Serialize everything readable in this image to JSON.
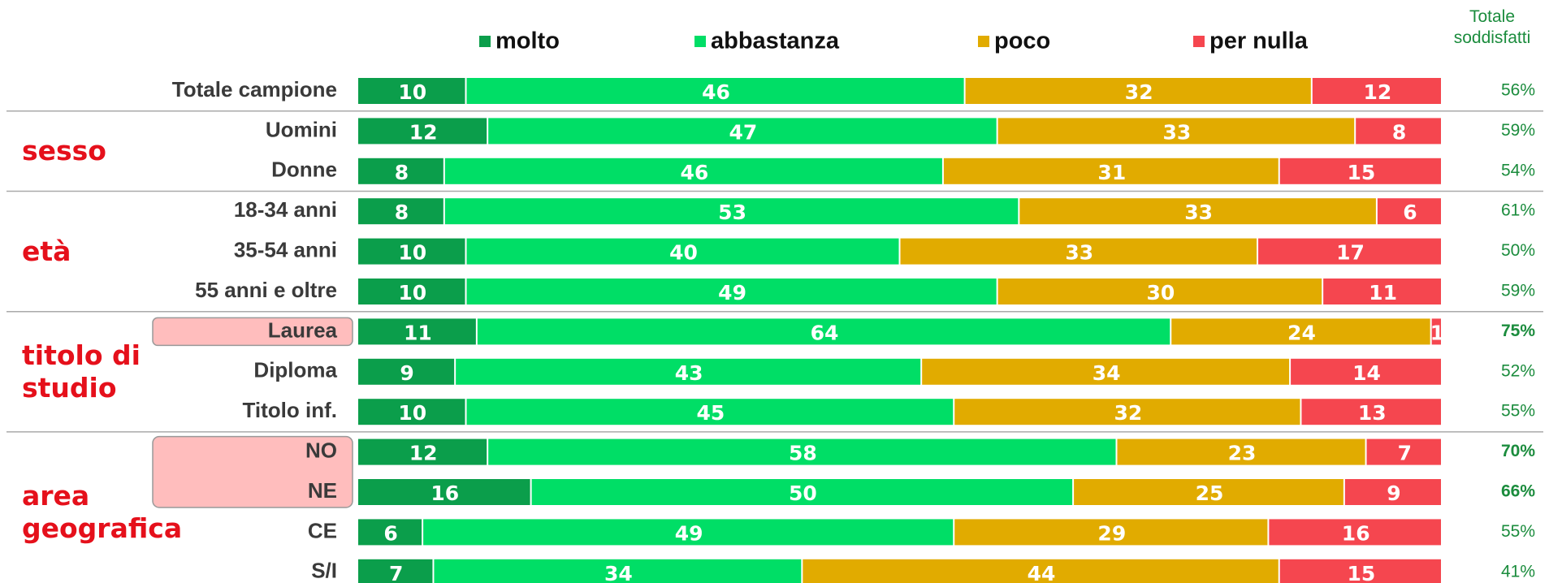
{
  "chart_data": {
    "type": "stacked-bar-horizontal",
    "categories": [
      "Totale campione",
      "Uomini",
      "Donne",
      "18-34 anni",
      "35-54 anni",
      "55 anni e oltre",
      "Laurea",
      "Diploma",
      "Titolo inf.",
      "NO",
      "NE",
      "CE",
      "S/I"
    ],
    "groups": [
      "sesso",
      "età",
      "titolo di studio",
      "area geografica"
    ],
    "series": [
      {
        "name": "molto",
        "color": "#0b9e4b",
        "values": [
          10,
          12,
          8,
          8,
          10,
          10,
          11,
          9,
          10,
          12,
          16,
          6,
          7
        ]
      },
      {
        "name": "abbastanza",
        "color": "#00de66",
        "values": [
          46,
          47,
          46,
          53,
          40,
          49,
          64,
          43,
          45,
          58,
          50,
          49,
          34
        ]
      },
      {
        "name": "poco",
        "color": "#e1ab00",
        "values": [
          32,
          33,
          31,
          33,
          33,
          30,
          24,
          34,
          32,
          23,
          25,
          29,
          44
        ]
      },
      {
        "name": "per nulla",
        "color": "#f5464f",
        "values": [
          12,
          8,
          15,
          6,
          17,
          11,
          1,
          14,
          13,
          7,
          9,
          16,
          15
        ]
      }
    ],
    "totals": {
      "title": "Totale soddisfatti",
      "color": "#1b8c3d",
      "values": [
        56,
        59,
        54,
        61,
        50,
        59,
        75,
        52,
        55,
        70,
        66,
        55,
        41
      ],
      "value_labels": [
        "56%",
        "59%",
        "54%",
        "61%",
        "50%",
        "59%",
        "75%",
        "52%",
        "55%",
        "70%",
        "66%",
        "55%",
        "41%"
      ]
    },
    "legend": "top"
  }
}
